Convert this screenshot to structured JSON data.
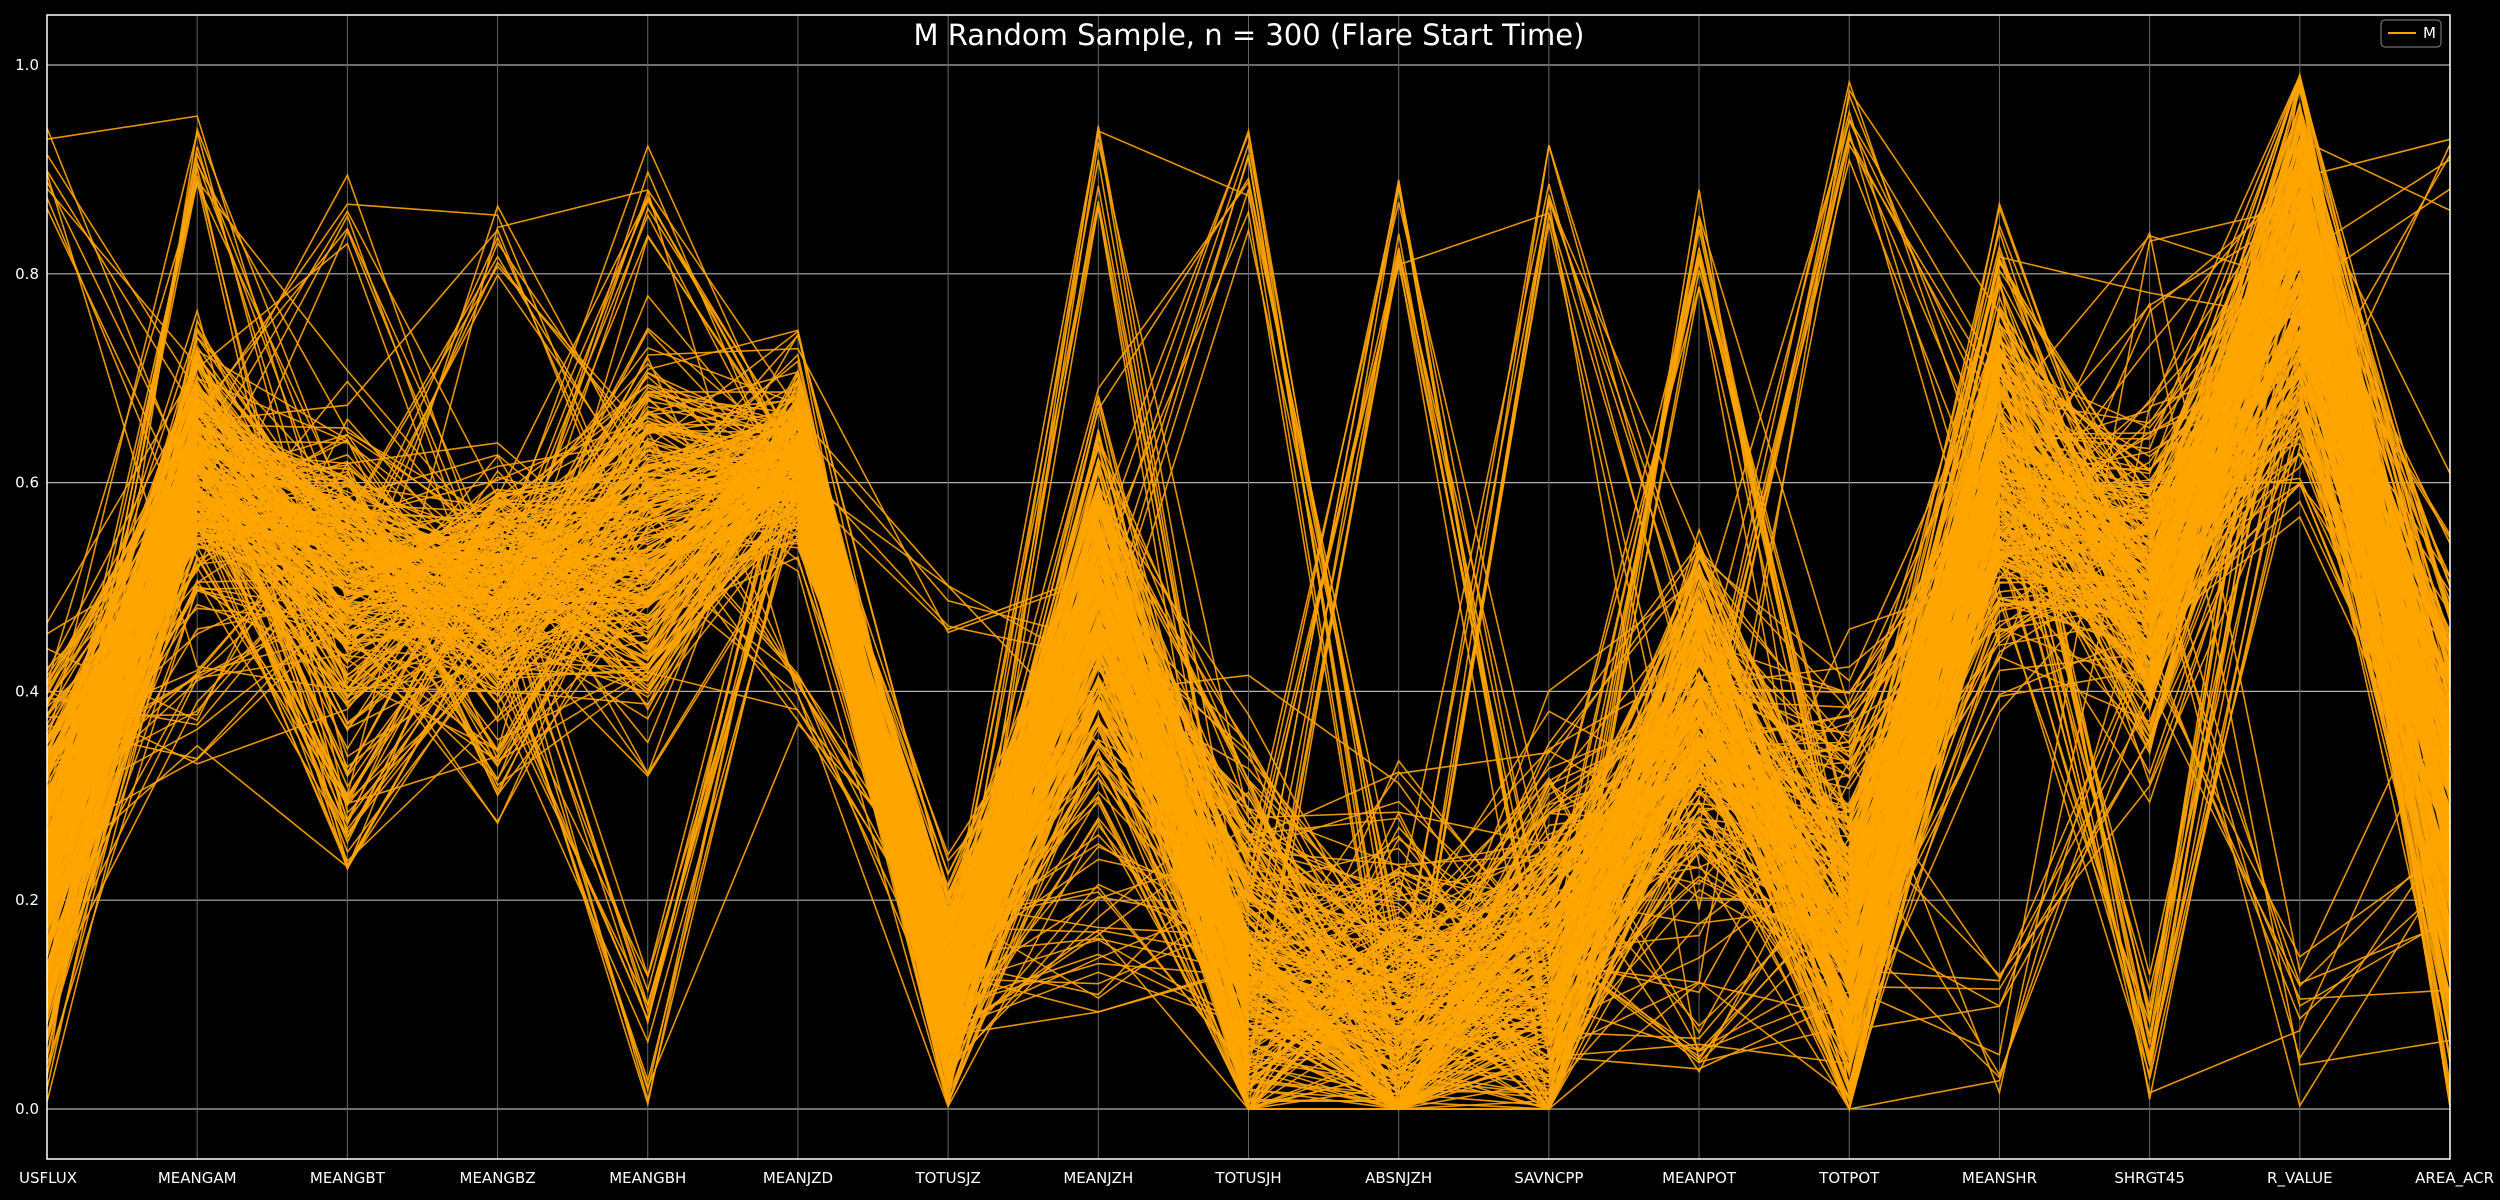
{
  "chart_data": {
    "type": "parallel_coordinates",
    "title": "M Random Sample, n = 300 (Flare Start Time)",
    "axes": [
      "USFLUX",
      "MEANGAM",
      "MEANGBT",
      "MEANGBZ",
      "MEANGBH",
      "MEANJZD",
      "TOTUSJZ",
      "MEANJZH",
      "TOTUSJH",
      "ABSNJZH",
      "SAVNCPP",
      "MEANPOT",
      "TOTPOT",
      "MEANSHR",
      "SHRGT45",
      "R_VALUE",
      "AREA_ACR"
    ],
    "ylim": [
      0,
      1
    ],
    "yticks": [
      "0.0",
      "0.2",
      "0.4",
      "0.6",
      "0.8",
      "1.0"
    ],
    "ytick_values": [
      0.0,
      0.2,
      0.4,
      0.6,
      0.8,
      1.0
    ],
    "grid": true,
    "legend": {
      "position": "top-right",
      "entries": [
        "M"
      ]
    },
    "series_color": "#FFA500",
    "n_lines": 300,
    "axis_value_ranges": [
      [
        0.0,
        0.94
      ],
      [
        0.33,
        0.96
      ],
      [
        0.23,
        0.91
      ],
      [
        0.26,
        0.87
      ],
      [
        0.0,
        0.93
      ],
      [
        0.36,
        0.76
      ],
      [
        0.0,
        0.51
      ],
      [
        0.09,
        0.95
      ],
      [
        0.0,
        0.95
      ],
      [
        0.0,
        0.91
      ],
      [
        0.0,
        0.94
      ],
      [
        0.03,
        0.89
      ],
      [
        0.0,
        1.0
      ],
      [
        0.0,
        0.92
      ],
      [
        0.0,
        0.86
      ],
      [
        0.0,
        0.99
      ],
      [
        0.0,
        0.96
      ]
    ],
    "axis_typical_values": [
      0.25,
      0.62,
      0.52,
      0.5,
      0.54,
      0.62,
      0.12,
      0.48,
      0.14,
      0.09,
      0.16,
      0.38,
      0.18,
      0.62,
      0.5,
      0.8,
      0.3
    ]
  },
  "colors": {
    "background": "#000000",
    "line": "#FFA500",
    "grid": "#b0b0b0",
    "axis": "#ffffff"
  }
}
